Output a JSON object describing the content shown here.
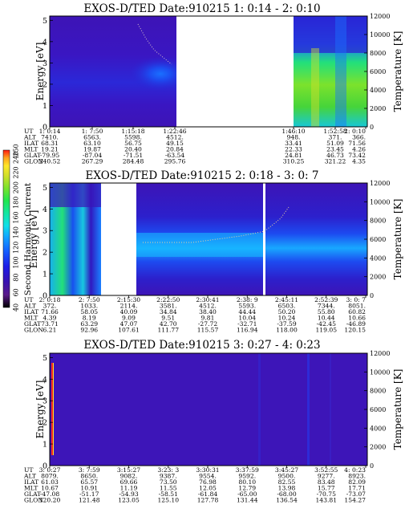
{
  "chart_data": {
    "type": "heatmap",
    "colorbar": {
      "label": "Second Harmonic Current",
      "ticks": [
        "40",
        "60",
        "80",
        "100",
        "120",
        "140",
        "160",
        "180",
        "200",
        "220",
        "240",
        "250"
      ],
      "colors": [
        "#000000",
        "#5a1a8a",
        "#3a12b0",
        "#1d1de8",
        "#1560ff",
        "#12a6ff",
        "#10e0e8",
        "#14e6a0",
        "#22e64e",
        "#7ce22c",
        "#d2e02a",
        "#ffe82a",
        "#ffa51e",
        "#ff1a12"
      ]
    },
    "panels": [
      {
        "title": "EXOS-D/TED   Date:910215  1: 0:14 - 2: 0:10",
        "ylabel": "Energy [eV]",
        "y2label": "Temperature [K]",
        "yticks": [
          "0",
          "1",
          "2",
          "3",
          "4",
          "5"
        ],
        "y2ticks": [
          "0",
          "2000",
          "4000",
          "6000",
          "8000",
          "10000",
          "12000"
        ],
        "ylim": [
          0,
          5.2
        ],
        "y2lim": [
          0,
          12000
        ],
        "row_labels": [
          "UT",
          "ALT",
          "ILAT",
          "MLT",
          "GLAT",
          "GLON"
        ],
        "columns": [
          [
            "1: 0:14",
            "7410.",
            "68.31",
            "19.21",
            "-79.95",
            "240.52"
          ],
          [
            "1: 7:50",
            "6563.",
            "63.10",
            "19.87",
            "-87.04",
            "267.29"
          ],
          [
            "1:15:18",
            "5598.",
            "56.75",
            "20.40",
            "-71.51",
            "284.48"
          ],
          [
            "1:22:46",
            "4512.",
            "49.15",
            "20.84",
            "-63.54",
            "295.76"
          ],
          [
            "1:46:10",
            "948.",
            "33.41",
            "22.33",
            "24.81",
            "310.25"
          ],
          [
            "1:52:58",
            "371.",
            "51.09",
            "23.45",
            "46.73",
            "321.22"
          ],
          [
            "2: 0:10",
            "366.",
            "71.56",
            "4.26",
            "73.42",
            "4.35"
          ]
        ],
        "data_gaps": [
          [
            "1:22:46",
            "1:46:10"
          ]
        ]
      },
      {
        "title": "EXOS-D/TED   Date:910215  2: 0:18 - 3: 0: 7",
        "ylabel": "Energy [eV]",
        "y2label": "Temperature [K]",
        "yticks": [
          "0",
          "1",
          "2",
          "3",
          "4",
          "5"
        ],
        "y2ticks": [
          "0",
          "2000",
          "4000",
          "6000",
          "8000",
          "10000",
          "12000"
        ],
        "ylim": [
          0,
          5.2
        ],
        "y2lim": [
          0,
          12000
        ],
        "row_labels": [
          "UT",
          "ALT",
          "ILAT",
          "MLT",
          "GLAT",
          "GLON"
        ],
        "columns": [
          [
            "2: 0:18",
            "372.",
            "71.66",
            "4.39",
            "73.71",
            "6.21"
          ],
          [
            "2: 7:50",
            "1033.",
            "58.05",
            "8.19",
            "63.29",
            "92.96"
          ],
          [
            "2:15:30",
            "2114.",
            "40.09",
            "9.09",
            "47.07",
            "107.61"
          ],
          [
            "2:22:50",
            "3581.",
            "34.84",
            "9.51",
            "42.70",
            "111.77"
          ],
          [
            "2:30:41",
            "4512.",
            "38.40",
            "9.81",
            "-27.72",
            "115.57"
          ],
          [
            "2:38: 9",
            "5593.",
            "44.44",
            "10.04",
            "-32.71",
            "116.94"
          ],
          [
            "2:45:11",
            "6503.",
            "50.20",
            "10.24",
            "-37.59",
            "118.00"
          ],
          [
            "2:52:39",
            "7344.",
            "55.80",
            "10.44",
            "-42.45",
            "119.05"
          ],
          [
            "3: 0: 7",
            "8051.",
            "60.82",
            "10.66",
            "-46.89",
            "120.15"
          ]
        ],
        "data_gaps": [
          [
            "2:10:30",
            "2:15:30"
          ],
          [
            "2:44:10",
            "2:44:30"
          ]
        ]
      },
      {
        "title": "EXOS-D/TED   Date:910215  3: 0:27 - 4: 0:23",
        "ylabel": "Energy [eV]",
        "y2label": "Temperature [K]",
        "yticks": [
          "0",
          "1",
          "2",
          "3",
          "4",
          "5"
        ],
        "y2ticks": [
          "0",
          "2000",
          "4000",
          "6000",
          "8000",
          "10000",
          "12000"
        ],
        "ylim": [
          0,
          5.2
        ],
        "y2lim": [
          0,
          12000
        ],
        "row_labels": [
          "UT",
          "ALT",
          "ILAT",
          "MLT",
          "GLAT",
          "GLON"
        ],
        "columns": [
          [
            "3: 0:27",
            "8079.",
            "61.03",
            "10.67",
            "-47.08",
            "120.20"
          ],
          [
            "3: 7:59",
            "8650.",
            "65.57",
            "10.91",
            "-51.17",
            "121.48"
          ],
          [
            "3:15:27",
            "9082.",
            "69.66",
            "11.19",
            "-54.93",
            "123.05"
          ],
          [
            "3:23: 3",
            "9387.",
            "73.50",
            "11.55",
            "-58.51",
            "125.10"
          ],
          [
            "3:30:31",
            "9554.",
            "76.98",
            "12.05",
            "-61.84",
            "127.78"
          ],
          [
            "3:37:59",
            "9592.",
            "80.10",
            "12.79",
            "-65.00",
            "131.44"
          ],
          [
            "3:45:27",
            "9500.",
            "82.55",
            "13.98",
            "-68.00",
            "136.54"
          ],
          [
            "3:52:55",
            "9277.",
            "83.48",
            "15.77",
            "-70.75",
            "143.81"
          ],
          [
            "4: 0:23",
            "8923.",
            "82.09",
            "17.71",
            "-73.07",
            "154.27"
          ]
        ],
        "data_gaps": []
      }
    ]
  }
}
